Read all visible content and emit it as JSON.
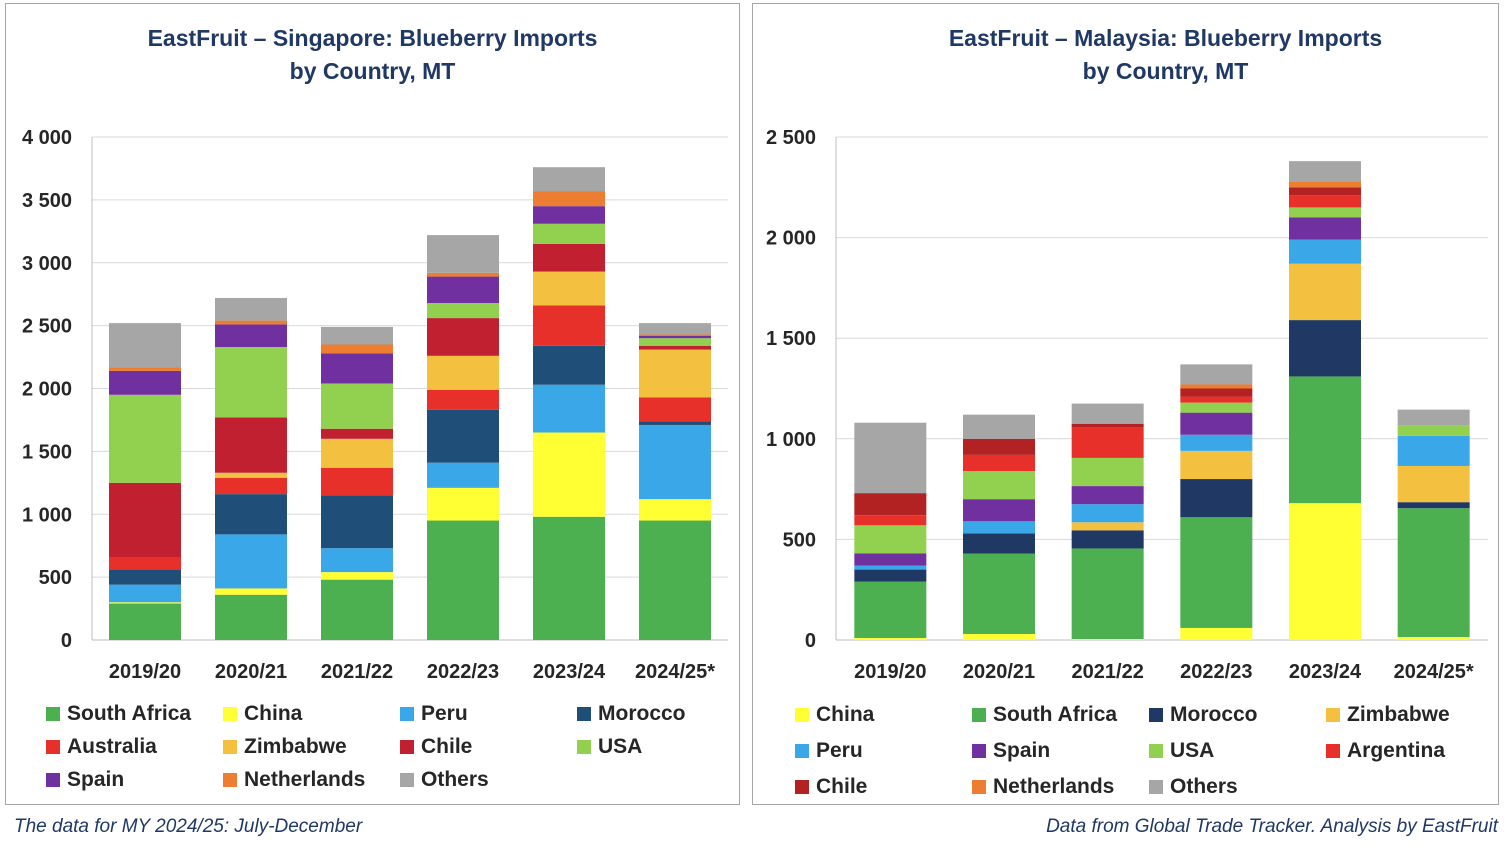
{
  "footnotes": {
    "left": "The data for MY 2024/25: July-December",
    "right": "Data from Global Trade Tracker. Analysis by  EastFruit"
  },
  "chart_data": [
    {
      "type": "bar",
      "stacked": true,
      "title_line1": "EastFruit –  Singapore: Blueberry Imports",
      "title_line2": "by Country, MT",
      "categories": [
        "2019/20",
        "2020/21",
        "2021/22",
        "2022/23",
        "2023/24",
        "2024/25*"
      ],
      "ylim": [
        0,
        4000
      ],
      "yticks": [
        0,
        500,
        1000,
        1500,
        2000,
        2500,
        3000,
        3500,
        4000
      ],
      "ytick_labels": [
        "0",
        "500",
        "1 000",
        "1 500",
        "2 000",
        "2 500",
        "3 000",
        "3 500",
        "4 000"
      ],
      "grid": true,
      "series": [
        {
          "name": "South Africa",
          "color": "#4caf50",
          "values": [
            290,
            360,
            480,
            950,
            980,
            950
          ]
        },
        {
          "name": "China",
          "color": "#ffff33",
          "values": [
            10,
            50,
            60,
            260,
            670,
            170
          ]
        },
        {
          "name": "Peru",
          "color": "#3aa8e8",
          "values": [
            140,
            430,
            190,
            200,
            380,
            590
          ]
        },
        {
          "name": "Morocco",
          "color": "#1f4e79",
          "values": [
            120,
            320,
            420,
            420,
            310,
            30
          ]
        },
        {
          "name": "Australia",
          "color": "#e8302a",
          "values": [
            100,
            130,
            220,
            160,
            320,
            190
          ]
        },
        {
          "name": "Zimbabwe",
          "color": "#f4c040",
          "values": [
            0,
            40,
            230,
            270,
            270,
            380
          ]
        },
        {
          "name": "Chile",
          "color": "#c0202f",
          "values": [
            590,
            440,
            80,
            300,
            220,
            30
          ]
        },
        {
          "name": "USA",
          "color": "#92d050",
          "values": [
            700,
            560,
            360,
            120,
            160,
            60
          ]
        },
        {
          "name": "Spain",
          "color": "#7030a0",
          "values": [
            190,
            180,
            240,
            210,
            140,
            20
          ]
        },
        {
          "name": "Netherlands",
          "color": "#ed7d31",
          "values": [
            30,
            30,
            70,
            30,
            120,
            10
          ]
        },
        {
          "name": "Others",
          "color": "#a6a6a6",
          "values": [
            350,
            180,
            140,
            300,
            190,
            90
          ]
        }
      ],
      "legend": {
        "columns": 4,
        "placement": "bottom"
      }
    },
    {
      "type": "bar",
      "stacked": true,
      "title_line1": "EastFruit –  Malaysia: Blueberry Imports",
      "title_line2": "by Country, MT",
      "categories": [
        "2019/20",
        "2020/21",
        "2021/22",
        "2022/23",
        "2023/24",
        "2024/25*"
      ],
      "ylim": [
        0,
        2500
      ],
      "yticks": [
        0,
        500,
        1000,
        1500,
        2000,
        2500
      ],
      "ytick_labels": [
        "0",
        "500",
        "1 000",
        "1 500",
        "2 000",
        "2 500"
      ],
      "grid": true,
      "series": [
        {
          "name": "China",
          "color": "#ffff33",
          "values": [
            10,
            30,
            5,
            60,
            680,
            15
          ]
        },
        {
          "name": "South Africa",
          "color": "#4caf50",
          "values": [
            280,
            400,
            450,
            550,
            630,
            640
          ]
        },
        {
          "name": "Morocco",
          "color": "#1f3864",
          "values": [
            60,
            100,
            90,
            190,
            280,
            30
          ]
        },
        {
          "name": "Zimbabwe",
          "color": "#f4c040",
          "values": [
            0,
            0,
            40,
            140,
            280,
            180
          ]
        },
        {
          "name": "Peru",
          "color": "#3aa8e8",
          "values": [
            20,
            60,
            90,
            80,
            120,
            150
          ]
        },
        {
          "name": "Spain",
          "color": "#7030a0",
          "values": [
            60,
            110,
            90,
            110,
            110,
            0
          ]
        },
        {
          "name": "USA",
          "color": "#92d050",
          "values": [
            140,
            140,
            140,
            50,
            50,
            50
          ]
        },
        {
          "name": "Argentina",
          "color": "#e8302a",
          "values": [
            50,
            80,
            150,
            30,
            60,
            0
          ]
        },
        {
          "name": "Chile",
          "color": "#b22222",
          "values": [
            110,
            80,
            20,
            40,
            40,
            0
          ]
        },
        {
          "name": "Netherlands",
          "color": "#ed7d31",
          "values": [
            0,
            0,
            0,
            20,
            30,
            0
          ]
        },
        {
          "name": "Others",
          "color": "#a6a6a6",
          "values": [
            350,
            120,
            100,
            100,
            100,
            80
          ]
        }
      ],
      "legend": {
        "columns": 4,
        "placement": "bottom"
      }
    }
  ]
}
